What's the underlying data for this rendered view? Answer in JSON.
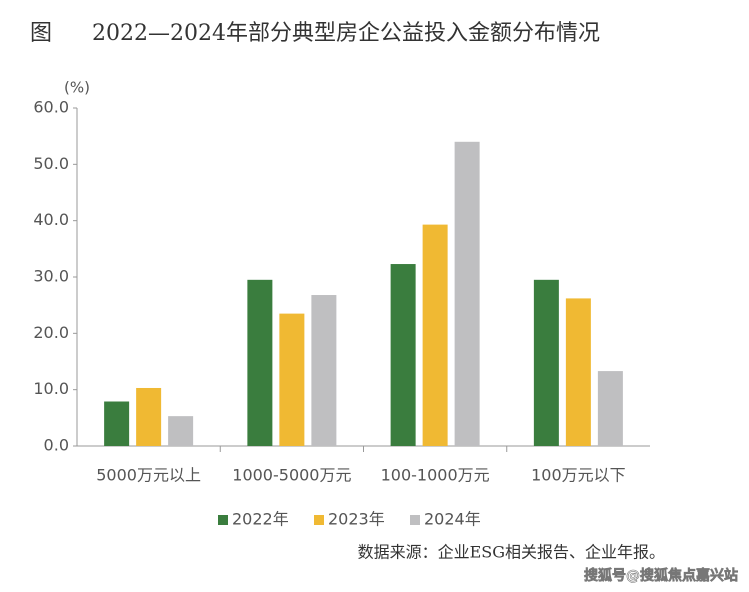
{
  "chart_data": {
    "type": "bar",
    "figure_label": "图",
    "title": "2022—2024年部分典型房企公益投入金额分布情况",
    "y_unit": "(%)",
    "categories": [
      "5000万元以上",
      "1000-5000万元",
      "100-1000万元",
      "100万元以下"
    ],
    "series": [
      {
        "name": "2022年",
        "color": "#3a7d3e",
        "values": [
          7.9,
          29.5,
          32.3,
          29.5
        ]
      },
      {
        "name": "2023年",
        "color": "#f0b933",
        "values": [
          10.3,
          23.5,
          39.3,
          26.2
        ]
      },
      {
        "name": "2024年",
        "color": "#bfbfc1",
        "values": [
          5.3,
          26.8,
          54.0,
          13.3
        ]
      }
    ],
    "ylim": [
      0,
      60
    ],
    "yticks": [
      {
        "value": 0,
        "label": "0.0"
      },
      {
        "value": 10,
        "label": "10.0"
      },
      {
        "value": 20,
        "label": "20.0"
      },
      {
        "value": 30,
        "label": "30.0"
      },
      {
        "value": 40,
        "label": "40.0"
      },
      {
        "value": 50,
        "label": "50.0"
      },
      {
        "value": 60,
        "label": "60.0"
      }
    ],
    "grid": false,
    "legend": "bottom",
    "source": "数据来源：企业ESG相关报告、企业年报。",
    "watermark": "搜狐号@搜狐焦点嘉兴站"
  }
}
